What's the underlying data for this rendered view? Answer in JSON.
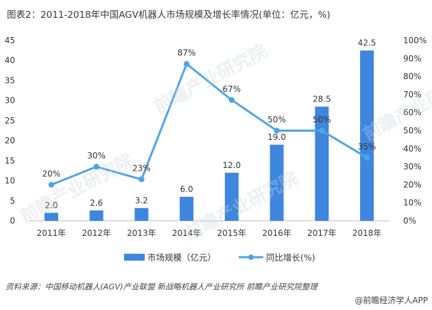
{
  "header": {
    "title": "图表2：2011-2018年中国AGV机器人市场规模及增长率情况(单位：亿元，%)"
  },
  "footer": {
    "source": "资料来源：中国移动机器人(AGV)产业联盟 新战略机器人产业研究所 前瞻产业研究院整理",
    "brand": "@前瞻经济学人APP"
  },
  "watermark": {
    "text": "前瞻产业研究院"
  },
  "chart_data": {
    "type": "bar",
    "categories": [
      "2011年",
      "2012年",
      "2013年",
      "2014年",
      "2015年",
      "2016年",
      "2017年",
      "2018年"
    ],
    "series": [
      {
        "name": "市场规模（亿元）",
        "type": "bar",
        "axis": "left",
        "color": "#3f86df",
        "values": [
          2.0,
          2.6,
          3.2,
          6.0,
          12.0,
          19.0,
          28.5,
          42.5
        ],
        "labels": [
          "2.0",
          "2.6",
          "3.2",
          "6.0",
          "12.0",
          "19.0",
          "28.5",
          "42.5"
        ]
      },
      {
        "name": "同比增长(%)",
        "type": "line",
        "axis": "right",
        "color": "#4ea4e6",
        "values": [
          20,
          30,
          23,
          87,
          67,
          50,
          50,
          35
        ],
        "labels": [
          "20%",
          "30%",
          "23%",
          "87%",
          "67%",
          "50%",
          "50%",
          "35%"
        ]
      }
    ],
    "y_left": {
      "range": [
        0,
        45
      ],
      "ticks": [
        "0",
        "5",
        "10",
        "15",
        "20",
        "25",
        "30",
        "35",
        "40",
        "45"
      ]
    },
    "y_right": {
      "range": [
        0,
        100
      ],
      "ticks": [
        "0%",
        "10%",
        "20%",
        "30%",
        "40%",
        "50%",
        "60%",
        "70%",
        "80%",
        "90%",
        "100%"
      ]
    },
    "grid": false,
    "legend": "bottom"
  }
}
